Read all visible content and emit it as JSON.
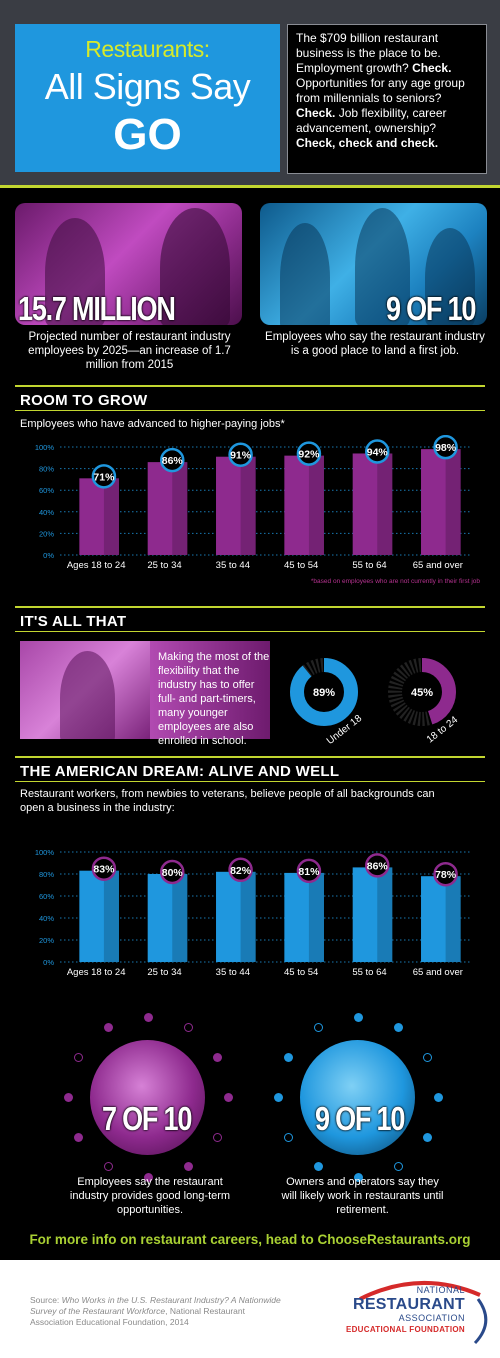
{
  "header": {
    "title_line1": "Restaurants:",
    "title_line2": "All Signs Say",
    "title_line3": "GO",
    "text_parts": [
      {
        "t": "The $709 billion restaurant business is the place to be. Employment growth? ",
        "b": false
      },
      {
        "t": "Check.",
        "b": true
      },
      {
        "t": " Opportunities for any age group from millennials to seniors? ",
        "b": false
      },
      {
        "t": "Check.",
        "b": true
      },
      {
        "t": " Job flexibility, career advancement, ownership? ",
        "b": false
      },
      {
        "t": "Check, check and check.",
        "b": true
      }
    ]
  },
  "stats_top": [
    {
      "value": "15.7 MILLION",
      "description": "Projected number of restaurant industry employees by 2025—an increase of 1.7 million from 2015"
    },
    {
      "value": "9 OF 10",
      "description": "Employees who say the restaurant industry is a good place to land a first job."
    }
  ],
  "room_to_grow": {
    "title": "ROOM TO GROW",
    "subtitle": "Employees who have advanced to higher-paying jobs*",
    "footnote": "*based on employees who are not currently in their first job"
  },
  "its_all_that": {
    "title": "IT'S ALL THAT",
    "text": "Making the most of the flexibility that the industry has to offer full- and part-timers, many younger employees are also enrolled in school.",
    "donuts": [
      {
        "label": "Under 18",
        "value": 89,
        "value_label": "89%",
        "color": "#1f97de"
      },
      {
        "label": "18 to 24",
        "value": 45,
        "value_label": "45%",
        "color": "#8e2a8e"
      }
    ]
  },
  "american_dream": {
    "title": "THE AMERICAN DREAM: ALIVE AND WELL",
    "subtitle": "Restaurant workers, from newbies to veterans, believe people of all backgrounds can open a business in the industry:"
  },
  "stats_bottom": [
    {
      "value": "7 OF 10",
      "description": "Employees say the restaurant industry provides good long-term opportunities."
    },
    {
      "value": "9 OF 10",
      "description": "Owners and operators say they will likely work in restaurants until retirement."
    }
  ],
  "cta": "For more info on restaurant careers, head to ChooseRestaurants.org",
  "footer": {
    "source_prefix": "Source: ",
    "source_title": "Who Works in the U.S. Restaurant Industry? A Nationwide Survey of the Restaurant Workforce",
    "source_suffix": ", National Restaurant Association Educational Foundation, 2014",
    "logo_line1": "NATIONAL",
    "logo_line2": "RESTAURANT",
    "logo_line3": "ASSOCIATION",
    "logo_line4": "EDUCATIONAL FOUNDATION"
  },
  "colors": {
    "blue": "#1f97de",
    "purple": "#8e2a8e",
    "lime": "#c2d630"
  },
  "chart_data": [
    {
      "type": "bar",
      "title": "",
      "categories": [
        "Ages 18 to 24",
        "25 to 34",
        "35 to 44",
        "45 to 54",
        "55 to 64",
        "65 and over"
      ],
      "values": [
        71,
        86,
        91,
        92,
        94,
        98
      ],
      "value_labels": [
        "71%",
        "86%",
        "91%",
        "92%",
        "94%",
        "98%"
      ],
      "yticks": [
        "0%",
        "20%",
        "40%",
        "60%",
        "80%",
        "100%"
      ],
      "ylim": [
        0,
        100
      ],
      "color": "#8e2a8e",
      "grid": true
    },
    {
      "type": "bar",
      "title": "",
      "categories": [
        "Ages 18 to 24",
        "25 to 34",
        "35 to 44",
        "45 to 54",
        "55 to 64",
        "65 and over"
      ],
      "values": [
        83,
        80,
        82,
        81,
        86,
        78
      ],
      "value_labels": [
        "83%",
        "80%",
        "82%",
        "81%",
        "86%",
        "78%"
      ],
      "yticks": [
        "0%",
        "20%",
        "40%",
        "60%",
        "80%",
        "100%"
      ],
      "ylim": [
        0,
        100
      ],
      "color": "#1f97de",
      "grid": true
    }
  ]
}
